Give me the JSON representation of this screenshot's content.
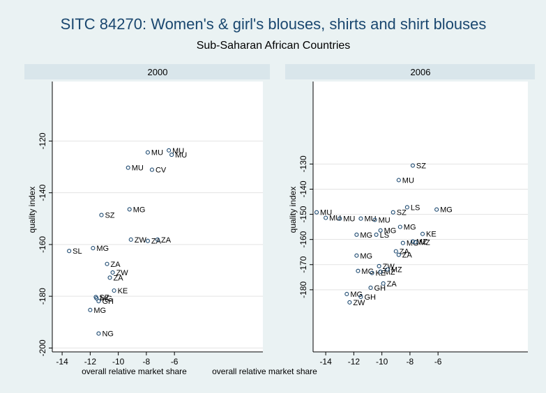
{
  "title": "SITC 84270: Women's & girl's blouses, shirts and shirt blouses",
  "subtitle": "Sub-Saharan African Countries",
  "chart_data": [
    {
      "type": "scatter",
      "title": "2000",
      "xlabel": "overall relative market share",
      "ylabel": "quality index",
      "color": "#1a476f",
      "grid": true,
      "xlim": [
        -14.7,
        0.3
      ],
      "ylim": [
        -201.5,
        -97
      ],
      "xticks": [
        -14,
        -12,
        -10,
        -8,
        -6
      ],
      "yticks": [
        -120,
        -140,
        -160,
        -180,
        -200
      ],
      "x": [
        -7.9,
        -6.4,
        -6.2,
        -9.3,
        -7.6,
        -9.2,
        -11.2,
        -9.1,
        -7.9,
        -7.2,
        -13.5,
        -11.8,
        -10.8,
        -10.4,
        -10.6,
        -10.3,
        -11.6,
        -11.55,
        -11.4,
        -12.0,
        -11.4
      ],
      "values": [
        -124.4,
        -123.6,
        -125.3,
        -130.3,
        -131.1,
        -146.4,
        -148.6,
        -158.1,
        -158.6,
        -158.1,
        -162.5,
        -161.4,
        -167.5,
        -170.8,
        -172.8,
        -177.8,
        -180.3,
        -180.8,
        -181.9,
        -185.3,
        -194.4
      ],
      "point_labels": [
        "MU",
        "MU",
        "MU",
        "MU",
        "CV",
        "MG",
        "SZ",
        "ZW",
        "ZA",
        "ZA",
        "SL",
        "MG",
        "ZA",
        "ZW",
        "ZA",
        "KE",
        "SZ",
        "MG",
        "GH",
        "MG",
        "NG"
      ]
    },
    {
      "type": "scatter",
      "title": "2006",
      "xlabel": "overall relative market share",
      "ylabel": "quality index",
      "color": "#1a476f",
      "grid": true,
      "xlim": [
        -14.9,
        0.4
      ],
      "ylim": [
        -204.7,
        -97.2
      ],
      "xticks": [
        -14,
        -12,
        -10,
        -8,
        -6
      ],
      "yticks": [
        -130,
        -140,
        -150,
        -160,
        -170,
        -180
      ],
      "x": [
        -7.8,
        -8.8,
        -8.2,
        -6.1,
        -14.65,
        -9.2,
        -14.0,
        -13.0,
        -11.5,
        -10.5,
        -8.7,
        -10.1,
        -10.4,
        -11.8,
        -7.1,
        -8.5,
        -7.8,
        -7.6,
        -11.8,
        -9.0,
        -8.8,
        -10.2,
        -11.7,
        -10.7,
        -10.1,
        -9.6,
        -9.9,
        -10.8,
        -12.5,
        -11.5,
        -12.3
      ],
      "values": [
        -130.6,
        -136.4,
        -147.2,
        -148.1,
        -149.2,
        -149.2,
        -151.4,
        -151.7,
        -151.7,
        -152.2,
        -155.0,
        -156.4,
        -158.1,
        -158.1,
        -157.8,
        -161.4,
        -160.8,
        -161.1,
        -166.4,
        -164.7,
        -166.1,
        -170.6,
        -172.5,
        -173.3,
        -172.8,
        -171.9,
        -177.5,
        -179.2,
        -181.7,
        -182.8,
        -185.0
      ],
      "point_labels": [
        "SZ",
        "MU",
        "LS",
        "MG",
        "MU",
        "SZ",
        "MU",
        "MU",
        "MU",
        "MU",
        "MG",
        "MG",
        "LS",
        "MG",
        "KE",
        "MG",
        "MZ",
        "MZ",
        "MG",
        "ZA",
        "ZA",
        "ZW",
        "MG",
        "KE",
        "MZ",
        "MZ",
        "ZA",
        "GH",
        "MG",
        "GH",
        "ZW"
      ]
    }
  ]
}
